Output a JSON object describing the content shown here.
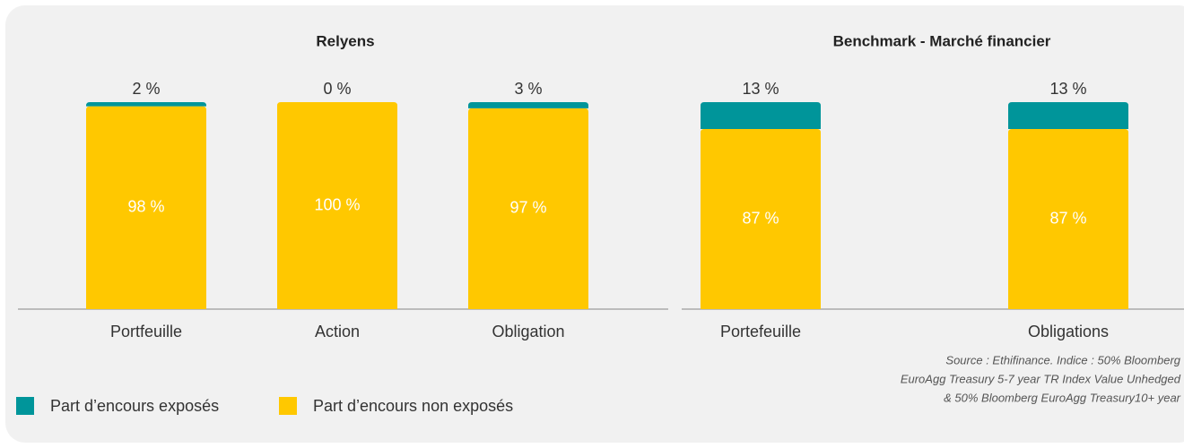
{
  "chart_data": [
    {
      "type": "stacked-bar",
      "title": "Relyens",
      "categories": [
        "Portfeuille",
        "Action",
        "Obligation"
      ],
      "series": [
        {
          "name": "Part d’encours exposés",
          "color": "#00959a",
          "values": [
            2,
            0,
            3
          ],
          "value_labels": [
            "2 %",
            "0 %",
            "3 %"
          ]
        },
        {
          "name": "Part d’encours non exposés",
          "color": "#ffc800",
          "values": [
            98,
            100,
            97
          ],
          "value_labels": [
            "98 %",
            "100 %",
            "97 %"
          ]
        }
      ]
    },
    {
      "type": "stacked-bar",
      "title": "Benchmark - Marché financier",
      "categories": [
        "Portefeuille",
        "Obligations"
      ],
      "series": [
        {
          "name": "Part d’encours exposés",
          "color": "#00959a",
          "values": [
            13,
            13
          ],
          "value_labels": [
            "13 %",
            "13 %"
          ]
        },
        {
          "name": "Part d’encours non exposés",
          "color": "#ffc800",
          "values": [
            87,
            87
          ],
          "value_labels": [
            "87 %",
            "87 %"
          ]
        }
      ]
    }
  ],
  "source": [
    "Source : Ethifinance.  Indice : 50% Bloomberg",
    "EuroAgg Treasury 5-7 year TR Index Value Unhedged",
    "& 50% Bloomberg EuroAgg Treasury10+ year"
  ]
}
